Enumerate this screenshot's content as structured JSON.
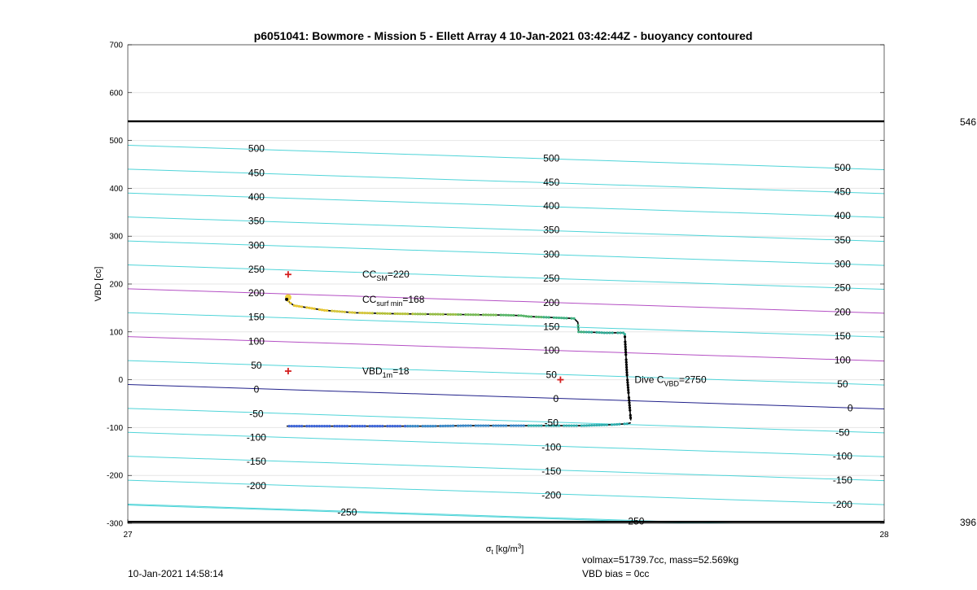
{
  "chart_data": {
    "type": "line",
    "title": "p6051041: Bowmore - Mission 5 - Ellett Array 4 10-Jan-2021 03:42:44Z - buoyancy contoured",
    "xlabel_main": "σ",
    "xlabel_sub": "t",
    "xlabel_unit": " [kg/m",
    "xlabel_sup": "3",
    "xlabel_close": "]",
    "ylabel": "VBD [cc]",
    "xlim": [
      27,
      28
    ],
    "ylim": [
      -300,
      700
    ],
    "xticks": [
      "27",
      "28"
    ],
    "yticks": [
      "700",
      "600",
      "500",
      "400",
      "300",
      "200",
      "100",
      "0",
      "-100",
      "-200",
      "-300"
    ],
    "grid": true,
    "colors": {
      "contour": "#4fd4d8",
      "magenta": "#b44fc4",
      "zero": "#20208a",
      "limit": "#000000",
      "marker": "#d42020",
      "grid": "#e6e6e6"
    },
    "limit_lines": [
      {
        "y": 540,
        "label": "546"
      },
      {
        "y": -297,
        "label": "396"
      }
    ],
    "contour_labels": [
      {
        "x": 27.17,
        "y": 483,
        "text": "500"
      },
      {
        "x": 27.17,
        "y": 432,
        "text": "450"
      },
      {
        "x": 27.17,
        "y": 382,
        "text": "400"
      },
      {
        "x": 27.17,
        "y": 332,
        "text": "350"
      },
      {
        "x": 27.17,
        "y": 281,
        "text": "300"
      },
      {
        "x": 27.17,
        "y": 231,
        "text": "250"
      },
      {
        "x": 27.17,
        "y": 181,
        "text": "200"
      },
      {
        "x": 27.17,
        "y": 131,
        "text": "150"
      },
      {
        "x": 27.17,
        "y": 80,
        "text": "100"
      },
      {
        "x": 27.17,
        "y": 30,
        "text": "50"
      },
      {
        "x": 27.17,
        "y": -20,
        "text": "0"
      },
      {
        "x": 27.17,
        "y": -71,
        "text": "-50"
      },
      {
        "x": 27.17,
        "y": -121,
        "text": "-100"
      },
      {
        "x": 27.17,
        "y": -171,
        "text": "-150"
      },
      {
        "x": 27.17,
        "y": -222,
        "text": "-200"
      },
      {
        "x": 27.29,
        "y": -277,
        "text": "-250"
      },
      {
        "x": 27.56,
        "y": 463,
        "text": "500"
      },
      {
        "x": 27.56,
        "y": 413,
        "text": "450"
      },
      {
        "x": 27.56,
        "y": 363,
        "text": "400"
      },
      {
        "x": 27.56,
        "y": 313,
        "text": "350"
      },
      {
        "x": 27.56,
        "y": 262,
        "text": "300"
      },
      {
        "x": 27.56,
        "y": 212,
        "text": "250"
      },
      {
        "x": 27.56,
        "y": 161,
        "text": "200"
      },
      {
        "x": 27.56,
        "y": 111,
        "text": "150"
      },
      {
        "x": 27.56,
        "y": 61,
        "text": "100"
      },
      {
        "x": 27.56,
        "y": 10,
        "text": "50"
      },
      {
        "x": 27.566,
        "y": -40,
        "text": "0"
      },
      {
        "x": 27.56,
        "y": -90,
        "text": "-50"
      },
      {
        "x": 27.56,
        "y": -141,
        "text": "-100"
      },
      {
        "x": 27.56,
        "y": -191,
        "text": "-150"
      },
      {
        "x": 27.56,
        "y": -241,
        "text": "-200"
      },
      {
        "x": 27.67,
        "y": -296,
        "text": "-250"
      },
      {
        "x": 27.945,
        "y": 443,
        "text": "500"
      },
      {
        "x": 27.945,
        "y": 393,
        "text": "450"
      },
      {
        "x": 27.945,
        "y": 343,
        "text": "400"
      },
      {
        "x": 27.945,
        "y": 292,
        "text": "350"
      },
      {
        "x": 27.945,
        "y": 242,
        "text": "300"
      },
      {
        "x": 27.945,
        "y": 192,
        "text": "250"
      },
      {
        "x": 27.945,
        "y": 141,
        "text": "200"
      },
      {
        "x": 27.945,
        "y": 91,
        "text": "150"
      },
      {
        "x": 27.945,
        "y": 41,
        "text": "100"
      },
      {
        "x": 27.945,
        "y": -9,
        "text": "50"
      },
      {
        "x": 27.955,
        "y": -59,
        "text": "0"
      },
      {
        "x": 27.945,
        "y": -110,
        "text": "-50"
      },
      {
        "x": 27.945,
        "y": -160,
        "text": "-100"
      },
      {
        "x": 27.945,
        "y": -210,
        "text": "-150"
      },
      {
        "x": 27.945,
        "y": -261,
        "text": "-200"
      }
    ],
    "series": [
      {
        "x": [
          27.21,
          27.212,
          27.215,
          27.22,
          27.24,
          27.26,
          27.3,
          27.35,
          27.4,
          27.45,
          27.5,
          27.52,
          27.53,
          27.59,
          27.595,
          27.596,
          27.62,
          27.63,
          27.655,
          27.657,
          27.66,
          27.665
        ],
        "y": [
          170,
          165,
          160,
          155,
          150,
          145,
          140,
          138,
          137,
          136,
          135,
          134,
          132,
          128,
          120,
          100,
          99,
          98,
          98,
          95,
          10,
          -85
        ]
      },
      {
        "x": [
          27.21,
          27.25,
          27.3,
          27.35,
          27.4,
          27.45,
          27.5,
          27.55,
          27.6,
          27.62,
          27.64,
          27.66,
          27.665
        ],
        "y": [
          -97,
          -97,
          -97,
          -97,
          -97,
          -96,
          -96,
          -96,
          -96,
          -95,
          -94,
          -92,
          -90
        ]
      }
    ],
    "markers": [
      {
        "x": 27.212,
        "y": 220
      },
      {
        "x": 27.212,
        "y": 18
      },
      {
        "x": 27.572,
        "y": 0
      }
    ],
    "annotations": [
      {
        "x": 27.31,
        "y": 220,
        "main": "CC",
        "sub": "SM",
        "tail": "=220"
      },
      {
        "x": 27.31,
        "y": 168,
        "main": "CC",
        "sub": "surf min",
        "tail": "=168"
      },
      {
        "x": 27.31,
        "y": 18,
        "main": "VBD",
        "sub": "1m",
        "tail": "=18"
      },
      {
        "x": 27.67,
        "y": 0,
        "main": "Dive C",
        "sub": "VBD",
        "tail": "=2750"
      }
    ]
  },
  "footer": {
    "date": "10-Jan-2021 14:58:14",
    "volmax": "volmax=51739.7cc, mass=52.569kg",
    "vbd_bias": "VBD bias = 0cc"
  }
}
